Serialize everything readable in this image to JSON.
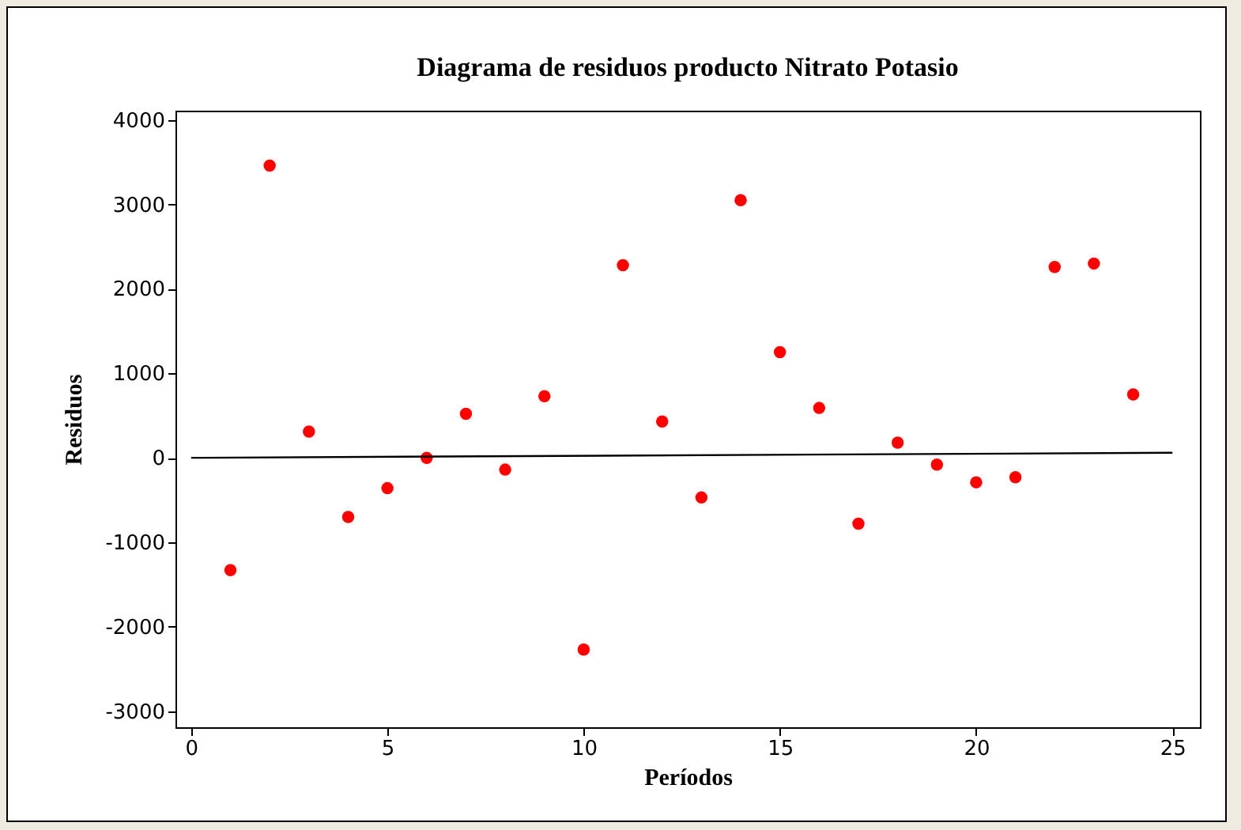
{
  "chart_data": {
    "type": "scatter",
    "title": "Diagrama de residuos producto Nitrato Potasio",
    "xlabel": "Períodos",
    "ylabel": "Residuos",
    "x": [
      1,
      2,
      3,
      4,
      5,
      6,
      7,
      8,
      9,
      10,
      11,
      12,
      13,
      14,
      15,
      16,
      17,
      18,
      19,
      20,
      21,
      22,
      23,
      24
    ],
    "series": [
      {
        "color": "#ff0000",
        "marker": "circle",
        "values": [
          -1330,
          3460,
          310,
          -700,
          -360,
          0,
          520,
          -140,
          730,
          -2270,
          2280,
          430,
          -470,
          3050,
          1250,
          590,
          -780,
          180,
          -80,
          -290,
          -230,
          2260,
          2300,
          750
        ]
      },
      {
        "type": "line",
        "color": "#000000",
        "marker": "none",
        "x": [
          0,
          25
        ],
        "values": [
          0,
          60
        ]
      }
    ],
    "xlim": [
      -0.4,
      25.7
    ],
    "ylim": [
      -3190,
      4110
    ],
    "xticks": [
      0,
      5,
      10,
      15,
      20,
      25
    ],
    "yticks": [
      -3000,
      -2000,
      -1000,
      0,
      1000,
      2000,
      3000,
      4000
    ],
    "grid": false
  }
}
